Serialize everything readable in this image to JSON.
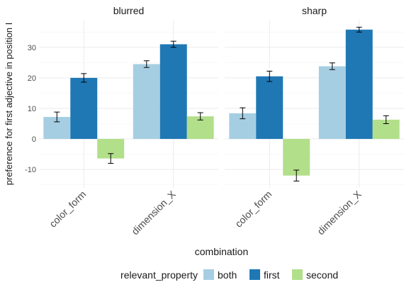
{
  "chart_data": {
    "type": "bar",
    "ylabel": "preference for first adjective in position I",
    "xlabel": "combination",
    "ylim": [
      -16,
      39
    ],
    "y_ticks": [
      -10,
      0,
      10,
      20,
      30
    ],
    "grid": true,
    "legend": {
      "title": "relevant_property",
      "position": "bottom"
    },
    "categories": [
      "color_form",
      "dimension_X"
    ],
    "panels": [
      {
        "title": "blurred",
        "series": [
          {
            "name": "both",
            "values": [
              7.2,
              24.5
            ],
            "errors": [
              1.6,
              1.1
            ]
          },
          {
            "name": "first",
            "values": [
              20.0,
              31.0
            ],
            "errors": [
              1.4,
              1.0
            ]
          },
          {
            "name": "second",
            "values": [
              -6.4,
              7.4
            ],
            "errors": [
              1.6,
              1.2
            ]
          }
        ]
      },
      {
        "title": "sharp",
        "series": [
          {
            "name": "both",
            "values": [
              8.4,
              23.8
            ],
            "errors": [
              1.8,
              1.1
            ]
          },
          {
            "name": "first",
            "values": [
              20.5,
              35.8
            ],
            "errors": [
              1.7,
              0.8
            ]
          },
          {
            "name": "second",
            "values": [
              -12.0,
              6.3
            ],
            "errors": [
              1.8,
              1.3
            ]
          }
        ]
      }
    ]
  },
  "colors": {
    "both": "#a6cee3",
    "first": "#1f78b4",
    "second": "#b2df8a",
    "grid": "#ebebeb",
    "text": "#4d4d4d",
    "title_text": "#1a1a1a"
  }
}
